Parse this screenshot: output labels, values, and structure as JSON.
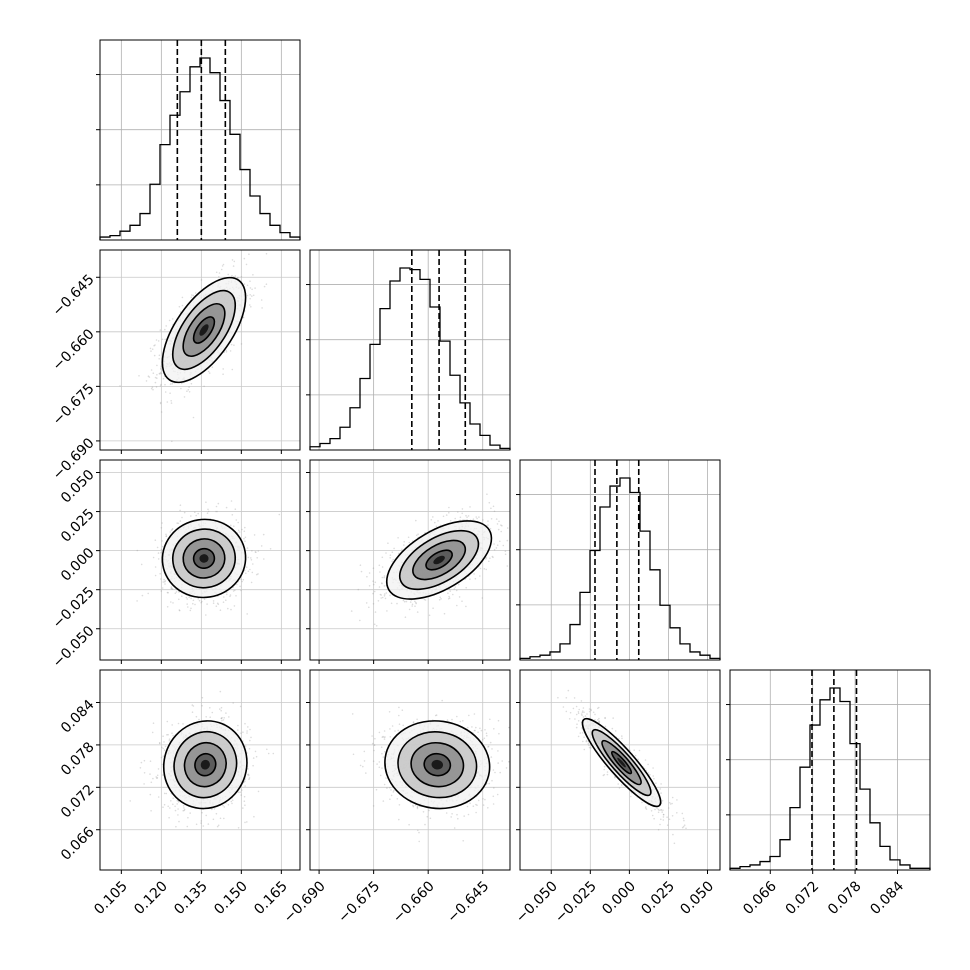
{
  "chart_data": {
    "type": "corner",
    "parameters": 4,
    "quantile_lines": "dashed",
    "grid": true,
    "axes": [
      {
        "range": [
          0.097,
          0.172
        ],
        "ticks": [
          "0.105",
          "0.120",
          "0.135",
          "0.150",
          "0.165"
        ],
        "tick_values": [
          0.105,
          0.12,
          0.135,
          0.15,
          0.165
        ],
        "quantiles": [
          0.126,
          0.135,
          0.144
        ]
      },
      {
        "range": [
          -0.6925,
          -0.6375
        ],
        "ticks": [
          "−0.690",
          "−0.675",
          "−0.660",
          "−0.645"
        ],
        "tick_values": [
          -0.69,
          -0.675,
          -0.66,
          -0.645
        ],
        "quantiles": [
          -0.6645,
          -0.657,
          -0.6498
        ]
      },
      {
        "range": [
          -0.07,
          0.058
        ],
        "ticks": [
          "−0.050",
          "−0.025",
          "0.000",
          "0.025",
          "0.050"
        ],
        "tick_values": [
          -0.05,
          -0.025,
          0.0,
          0.025,
          0.05
        ],
        "quantiles": [
          -0.022,
          -0.008,
          0.006
        ]
      },
      {
        "range": [
          0.0603,
          0.0886
        ],
        "ticks": [
          "0.066",
          "0.072",
          "0.078",
          "0.084"
        ],
        "tick_values": [
          0.066,
          0.072,
          0.078,
          0.084
        ],
        "quantiles": [
          0.0719,
          0.075,
          0.0782
        ]
      }
    ],
    "histograms": [
      {
        "counts": [
          2,
          3,
          6,
          10,
          18,
          38,
          65,
          85,
          101,
          118,
          124,
          114,
          95,
          72,
          48,
          30,
          18,
          10,
          5,
          2
        ]
      },
      {
        "counts": [
          2,
          4,
          7,
          14,
          26,
          44,
          65,
          87,
          104,
          112,
          111,
          105,
          88,
          67,
          46,
          29,
          16,
          9,
          3,
          1
        ]
      },
      {
        "counts": [
          1,
          2,
          3,
          5,
          10,
          22,
          42,
          68,
          95,
          108,
          113,
          104,
          80,
          56,
          34,
          20,
          10,
          5,
          3,
          1
        ]
      },
      {
        "counts": [
          1,
          2,
          3,
          5,
          8,
          18,
          37,
          61,
          86,
          101,
          108,
          100,
          75,
          48,
          28,
          14,
          6,
          3,
          1,
          1
        ]
      }
    ],
    "pairs": [
      {
        "x_param": 0,
        "y_param": 1,
        "mean": [
          0.136,
          -0.6595
        ],
        "sd": [
          0.0078,
          0.0072
        ],
        "corr": 0.62
      },
      {
        "x_param": 0,
        "y_param": 2,
        "mean": [
          0.136,
          -0.005
        ],
        "sd": [
          0.0078,
          0.0125
        ],
        "corr": 0.02
      },
      {
        "x_param": 1,
        "y_param": 2,
        "mean": [
          -0.657,
          -0.006
        ],
        "sd": [
          0.0072,
          0.0125
        ],
        "corr": 0.55
      },
      {
        "x_param": 0,
        "y_param": 3,
        "mean": [
          0.1365,
          0.0752
        ],
        "sd": [
          0.0078,
          0.0031
        ],
        "corr": 0.05
      },
      {
        "x_param": 1,
        "y_param": 3,
        "mean": [
          -0.6575,
          0.0752
        ],
        "sd": [
          0.0072,
          0.0031
        ],
        "corr": -0.05
      },
      {
        "x_param": 2,
        "y_param": 3,
        "mean": [
          -0.005,
          0.0755
        ],
        "sd": [
          0.0125,
          0.0031
        ],
        "corr": -0.9
      }
    ]
  }
}
